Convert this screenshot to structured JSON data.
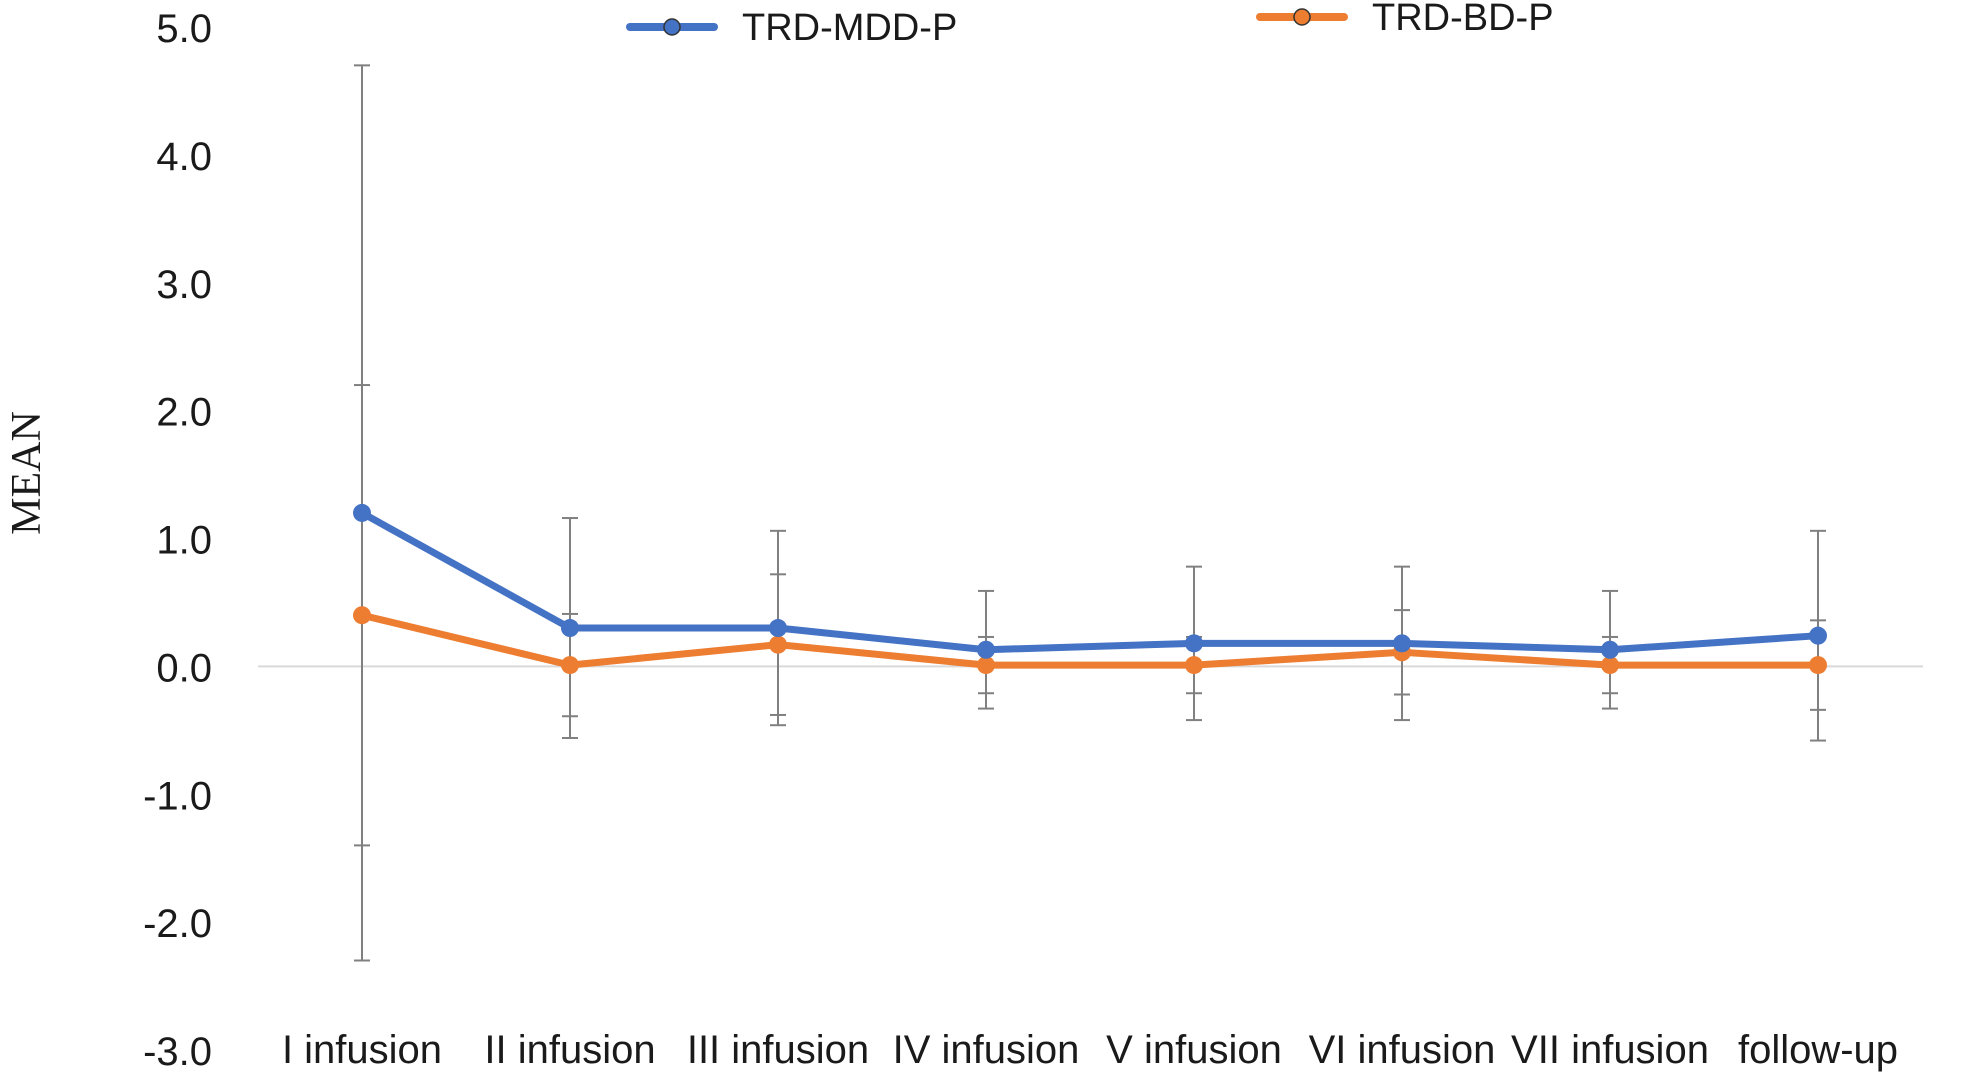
{
  "chart_data": {
    "type": "line",
    "title": "",
    "xlabel": "",
    "ylabel": "MEAN",
    "ylim": [
      -3.0,
      5.0
    ],
    "ytick_step": 1.0,
    "ytick_labels": [
      "-3.0",
      "-2.0",
      "-1.0",
      "0.0",
      "1.0",
      "2.0",
      "3.0",
      "4.0",
      "5.0"
    ],
    "categories": [
      "I infusion",
      "II infusion",
      "III infusion",
      "IV infusion",
      "V infusion",
      "VI infusion",
      "VII infusion",
      "follow-up"
    ],
    "grid": false,
    "zero_line": true,
    "legend_position": "top",
    "series": [
      {
        "name": "TRD-MDD-P",
        "color": "#4472C4",
        "values": [
          1.2,
          0.3,
          0.3,
          0.13,
          0.18,
          0.18,
          0.13,
          0.24
        ],
        "error": [
          3.5,
          0.86,
          0.76,
          0.46,
          0.6,
          0.6,
          0.46,
          0.82
        ]
      },
      {
        "name": "TRD-BD-P",
        "color": "#ED7D31",
        "values": [
          0.4,
          0.01,
          0.17,
          0.01,
          0.01,
          0.11,
          0.01,
          0.01
        ],
        "error": [
          1.8,
          0.4,
          0.55,
          0.22,
          0.22,
          0.33,
          0.22,
          0.35
        ]
      }
    ],
    "errorbar_color": "#808080",
    "zero_line_color": "#d9d9d9"
  }
}
